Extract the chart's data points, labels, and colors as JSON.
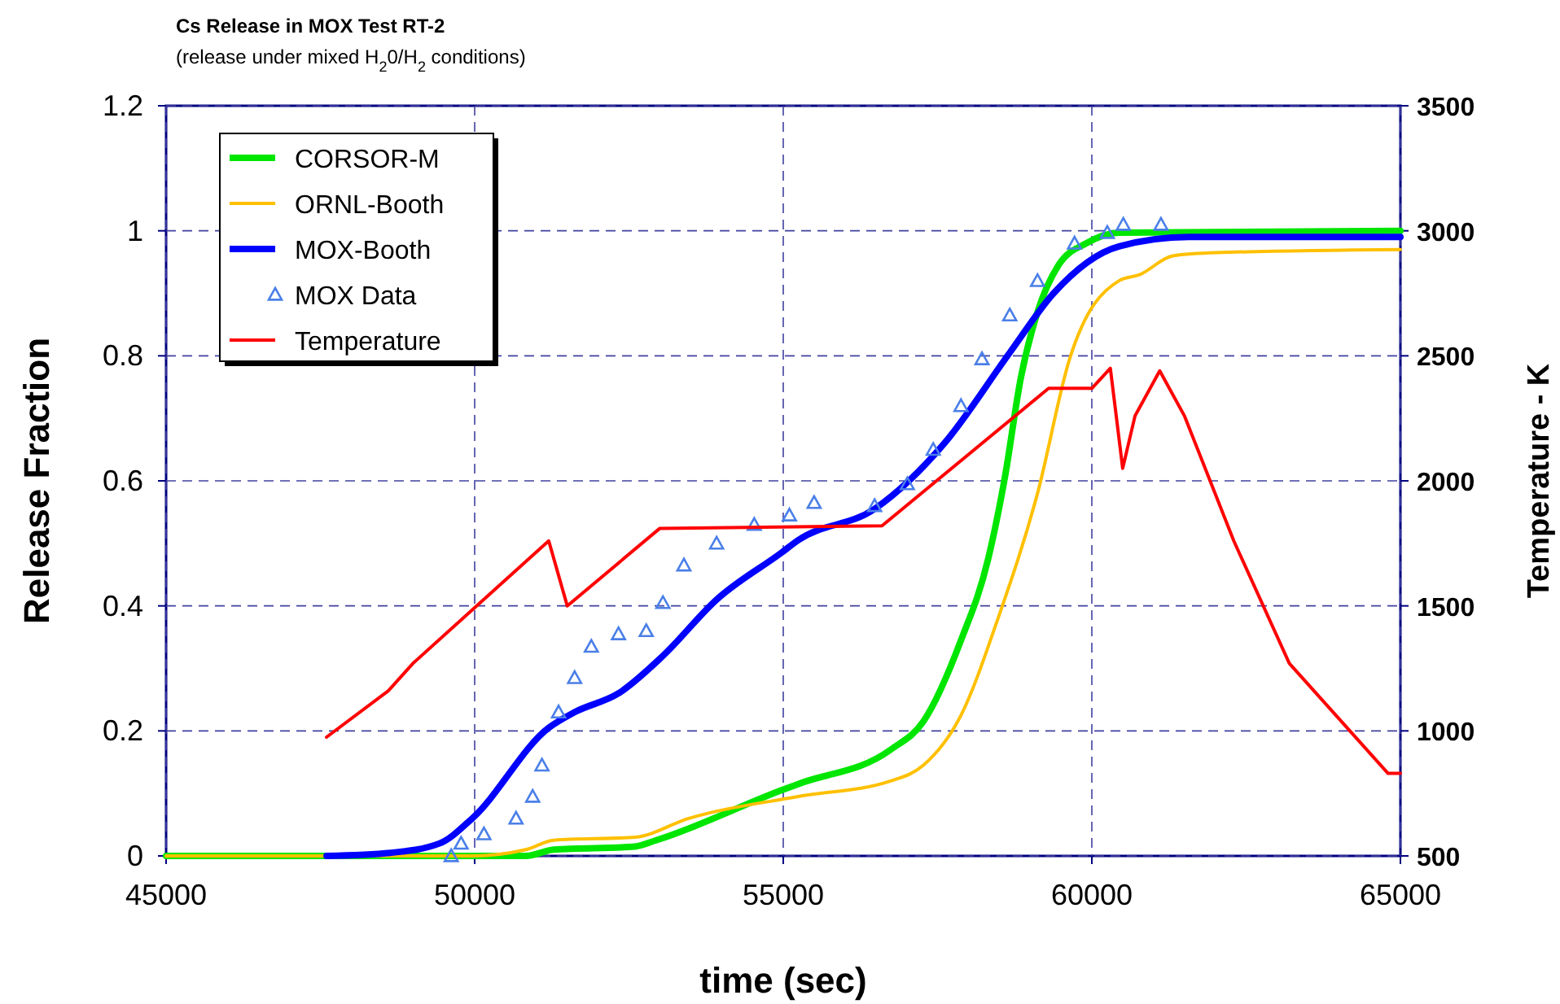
{
  "chart_data": {
    "type": "line",
    "title": "Cs Release in MOX Test RT-2",
    "subtitle": "(release under mixed H$_{2}$0/H$_{2}$ conditions)",
    "xlabel": "time (sec)",
    "ylabel": "Release Fraction",
    "y2label": "Temperature - K",
    "xlim": [
      45000,
      65000
    ],
    "xticks": [
      45000,
      50000,
      55000,
      60000,
      65000
    ],
    "ylim": [
      0,
      1.2
    ],
    "yticks": [
      0,
      0.2,
      0.4,
      0.6,
      0.8,
      1,
      1.2
    ],
    "y2lim": [
      500,
      3500
    ],
    "y2ticks": [
      500,
      1000,
      1500,
      2000,
      2500,
      3000,
      3500
    ],
    "grid": true,
    "legend": "top left",
    "series": [
      {
        "name": "CORSOR-M",
        "color": "#00e600",
        "x": [
          45000,
          50830,
          51280,
          52600,
          52940,
          54970,
          55240,
          56740,
          57270,
          57880,
          58320,
          58590,
          58850,
          59120,
          59460,
          59910,
          60440,
          65000
        ],
        "values": [
          0,
          0,
          0.01,
          0.015,
          0.025,
          0.105,
          0.115,
          0.17,
          0.215,
          0.345,
          0.475,
          0.605,
          0.765,
          0.87,
          0.945,
          0.98,
          0.997,
          1
        ]
      },
      {
        "name": "ORNL-Booth",
        "color": "#ffc000",
        "x": [
          45000,
          49960,
          50830,
          51280,
          52600,
          53470,
          55240,
          56740,
          57270,
          57880,
          58480,
          59120,
          59640,
          60440,
          60780,
          61310,
          62020,
          65000
        ],
        "values": [
          0,
          0,
          0.01,
          0.025,
          0.03,
          0.06,
          0.095,
          0.12,
          0.145,
          0.225,
          0.38,
          0.58,
          0.795,
          0.92,
          0.93,
          0.96,
          0.965,
          0.97
        ]
      },
      {
        "name": "MOX-Booth",
        "color": "#0000ff",
        "x": [
          47600,
          48640,
          49430,
          49960,
          51200,
          51620,
          52330,
          53050,
          53920,
          54970,
          55240,
          56480,
          57610,
          58670,
          59380,
          60440,
          61570,
          65000
        ],
        "values": [
          0,
          0.005,
          0.02,
          0.06,
          0.205,
          0.23,
          0.26,
          0.32,
          0.41,
          0.485,
          0.505,
          0.555,
          0.66,
          0.805,
          0.9,
          0.975,
          0.99,
          0.99
        ]
      },
      {
        "name": "MOX Data",
        "type": "scatter",
        "marker": "triangle",
        "color": "#4a7fe8",
        "x": [
          49620,
          49780,
          50150,
          50670,
          50940,
          51090,
          51360,
          51620,
          51890,
          52330,
          52780,
          53050,
          53390,
          53920,
          54530,
          55100,
          55500,
          56480,
          57010,
          57430,
          57880,
          58220,
          58670,
          59120,
          59720,
          60250,
          60510,
          61120
        ],
        "values": [
          0,
          0.02,
          0.035,
          0.06,
          0.095,
          0.145,
          0.23,
          0.285,
          0.335,
          0.355,
          0.36,
          0.405,
          0.465,
          0.5,
          0.53,
          0.545,
          0.565,
          0.56,
          0.595,
          0.65,
          0.72,
          0.795,
          0.865,
          0.92,
          0.98,
          0.997,
          1.01,
          1.01
        ]
      },
      {
        "name": "Temperature",
        "axis": "y2",
        "color": "#ff0000",
        "x": [
          47600,
          48600,
          49000,
          51200,
          51500,
          53000,
          56600,
          59300,
          60000,
          60300,
          60500,
          60700,
          61100,
          61500,
          62300,
          63200,
          64800,
          65000
        ],
        "values": [
          975,
          1160,
          1270,
          1760,
          1500,
          1810,
          1820,
          2370,
          2370,
          2450,
          2050,
          2260,
          2440,
          2260,
          1760,
          1270,
          830,
          830
        ]
      }
    ]
  }
}
